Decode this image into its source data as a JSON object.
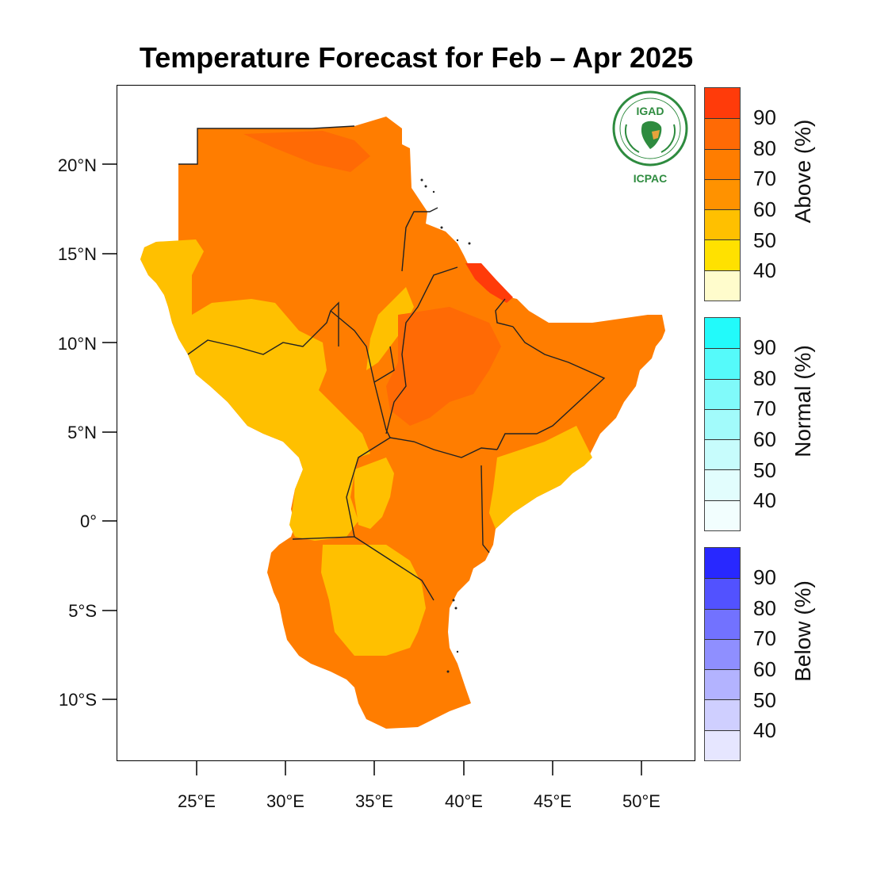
{
  "title": "Temperature Forecast for Feb – Apr 2025",
  "y_axis_labels": [
    "20°N",
    "15°N",
    "10°N",
    "5°N",
    "0°",
    "5°S",
    "10°S"
  ],
  "x_axis_labels": [
    "25°E",
    "30°E",
    "35°E",
    "40°E",
    "45°E",
    "50°E"
  ],
  "logo": {
    "org": "IGAD",
    "center": "ICPAC"
  },
  "legends": [
    {
      "label": "Above (%)",
      "ticks": [
        "90",
        "80",
        "70",
        "60",
        "50",
        "40"
      ],
      "colors": [
        "#ff3b0a",
        "#ff6a05",
        "#ff7d00",
        "#ff9200",
        "#ffc000",
        "#ffe100",
        "#fffccc"
      ]
    },
    {
      "label": "Normal (%)",
      "ticks": [
        "90",
        "80",
        "70",
        "60",
        "50",
        "40"
      ],
      "colors": [
        "#22fafa",
        "#55fafa",
        "#80fafa",
        "#a2fbfb",
        "#c7fcfc",
        "#e2fdfd",
        "#f2fefe"
      ]
    },
    {
      "label": "Below (%)",
      "ticks": [
        "90",
        "80",
        "70",
        "60",
        "50",
        "40"
      ],
      "colors": [
        "#2828ff",
        "#5252ff",
        "#7272ff",
        "#8f8fff",
        "#b3b3ff",
        "#cfcfff",
        "#e6e6ff"
      ]
    }
  ],
  "map_colors": {
    "main": "#ff7d00",
    "warm": "#ff6a05",
    "hot": "#ff3b0a",
    "mild": "#ffc000",
    "light": "#ffe100"
  }
}
